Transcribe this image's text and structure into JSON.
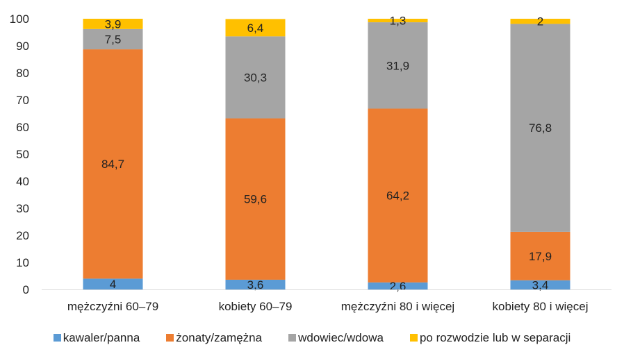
{
  "chart_data": {
    "type": "bar",
    "stacked": true,
    "title": "",
    "xlabel": "",
    "ylabel": "",
    "ylim": [
      0,
      100
    ],
    "yticks": [
      0,
      10,
      20,
      30,
      40,
      50,
      60,
      70,
      80,
      90,
      100
    ],
    "grid": false,
    "legend_position": "bottom",
    "categories": [
      "mężczyźni 60–79",
      "kobiety 60–79",
      "mężczyźni 80 i więcej",
      "kobiety 80 i więcej"
    ],
    "series": [
      {
        "name": "kawaler/panna",
        "color": "#5B9BD5",
        "values": [
          4,
          3.6,
          2.6,
          3.4
        ]
      },
      {
        "name": "żonaty/zamężna",
        "color": "#ED7D31",
        "values": [
          84.7,
          59.6,
          64.2,
          17.9
        ]
      },
      {
        "name": "wdowiec/wdowa",
        "color": "#A5A5A5",
        "values": [
          7.5,
          30.3,
          31.9,
          76.8
        ]
      },
      {
        "name": "po rozwodzie lub w separacji",
        "color": "#FFC000",
        "values": [
          3.9,
          6.4,
          1.3,
          2
        ]
      }
    ]
  }
}
